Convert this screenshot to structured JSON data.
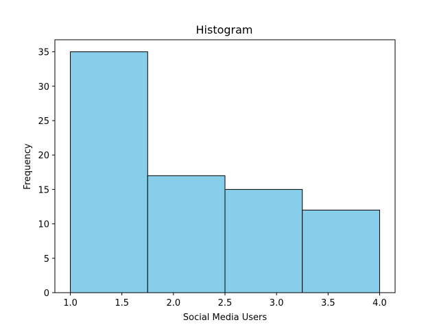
{
  "chart_data": {
    "type": "bar",
    "title": "Histogram",
    "xlabel": "Social Media Users",
    "ylabel": "Frequency",
    "bins": [
      {
        "start": 1.0,
        "end": 1.75,
        "value": 35
      },
      {
        "start": 1.75,
        "end": 2.5,
        "value": 17
      },
      {
        "start": 2.5,
        "end": 3.25,
        "value": 15
      },
      {
        "start": 3.25,
        "end": 4.0,
        "value": 12
      }
    ],
    "xlim": [
      0.85,
      4.15
    ],
    "ylim": [
      0,
      36.75
    ],
    "xticks": [
      1.0,
      1.5,
      2.0,
      2.5,
      3.0,
      3.5,
      4.0
    ],
    "xtick_labels": [
      "1.0",
      "1.5",
      "2.0",
      "2.5",
      "3.0",
      "3.5",
      "4.0"
    ],
    "yticks": [
      0,
      5,
      10,
      15,
      20,
      25,
      30,
      35
    ],
    "ytick_labels": [
      "0",
      "5",
      "10",
      "15",
      "20",
      "25",
      "30",
      "35"
    ],
    "bar_color": "#87ceeb",
    "edge_color": "#000000",
    "grid": false,
    "legend": "none"
  }
}
